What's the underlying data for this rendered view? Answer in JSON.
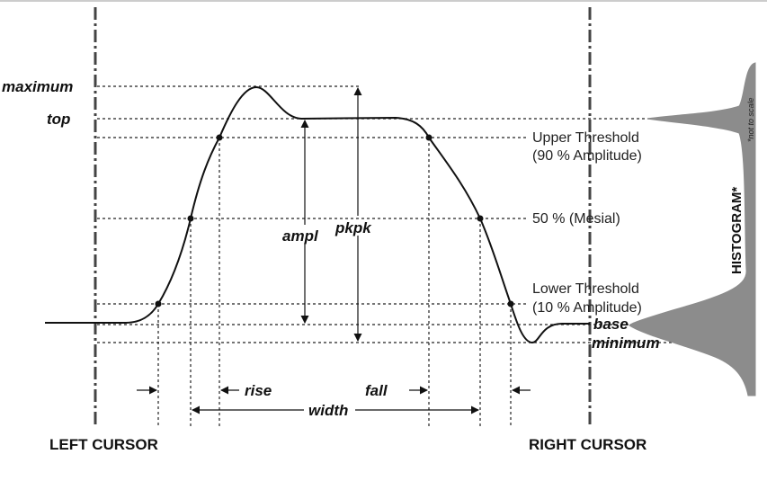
{
  "labels": {
    "maximum": "maximum",
    "top": "top",
    "base": "base",
    "minimum": "minimum",
    "ampl": "ampl",
    "pkpk": "pkpk",
    "rise": "rise",
    "fall": "fall",
    "width": "width"
  },
  "thresholds": {
    "upper_line1": "Upper Threshold",
    "upper_line2": "(90 % Amplitude)",
    "mesial": "50 % (Mesial)",
    "lower_line1": "Lower Threshold",
    "lower_line2": "(10 % Amplitude)"
  },
  "cursors": {
    "left": "LEFT CURSOR",
    "right": "RIGHT CURSOR"
  },
  "histogram": {
    "title": "HISTOGRAM*",
    "note": "*not to scale"
  },
  "colors": {
    "line": "#111111",
    "histogram_fill": "#8c8c8c",
    "background": "#ffffff"
  }
}
